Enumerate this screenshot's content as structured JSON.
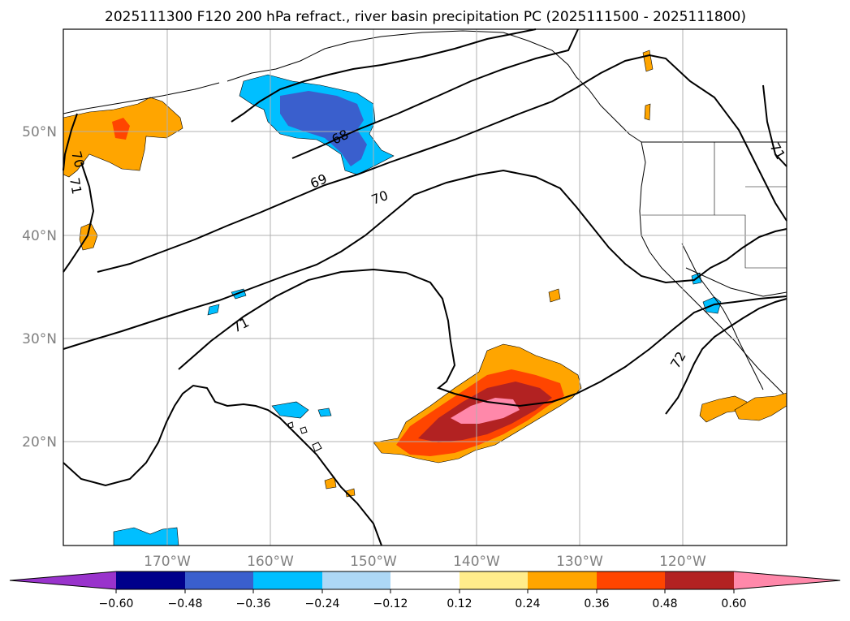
{
  "title": "2025111300 F120 200 hPa refract., river basin precipitation PC (2025111500 - 2025111800)",
  "axes": {
    "lat_labels": [
      "50°N",
      "40°N",
      "30°N",
      "20°N"
    ],
    "lon_labels": [
      "170°W",
      "160°W",
      "150°W",
      "140°W",
      "130°W",
      "120°W"
    ]
  },
  "contours": {
    "labels": [
      "68",
      "69",
      "70",
      "71",
      "70",
      "71",
      "71",
      "72"
    ]
  },
  "colorbar": {
    "ticks": [
      "−0.60",
      "−0.48",
      "−0.36",
      "−0.24",
      "−0.12",
      "0.12",
      "0.24",
      "0.36",
      "0.48",
      "0.60"
    ],
    "colors": [
      "#9933cc",
      "#00008b",
      "#3a5fcd",
      "#00bfff",
      "#add8f6",
      "#ffffff",
      "#ffec8b",
      "#ffa500",
      "#ff4500",
      "#b22222",
      "#ff88aa",
      "#ff88aa"
    ]
  },
  "colors": {
    "text_gray": "#808080",
    "grid": "#b0b0b0",
    "contour": "#000000"
  }
}
